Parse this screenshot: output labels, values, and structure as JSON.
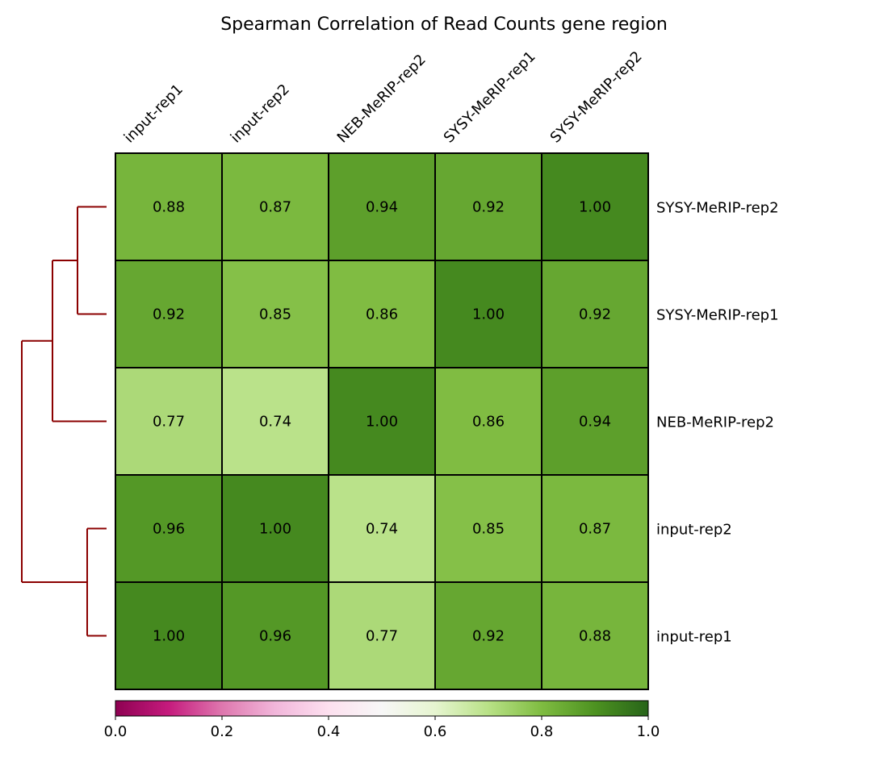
{
  "chart_data": {
    "type": "heatmap",
    "title": "Spearman Correlation of Read Counts gene region",
    "columns": [
      "input-rep1",
      "input-rep2",
      "NEB-MeRIP-rep2",
      "SYSY-MeRIP-rep1",
      "SYSY-MeRIP-rep2"
    ],
    "rows": [
      "SYSY-MeRIP-rep2",
      "SYSY-MeRIP-rep1",
      "NEB-MeRIP-rep2",
      "input-rep2",
      "input-rep1"
    ],
    "values": [
      [
        0.88,
        0.87,
        0.94,
        0.92,
        1.0
      ],
      [
        0.92,
        0.85,
        0.86,
        1.0,
        0.92
      ],
      [
        0.77,
        0.74,
        1.0,
        0.86,
        0.94
      ],
      [
        0.96,
        1.0,
        0.74,
        0.85,
        0.87
      ],
      [
        1.0,
        0.96,
        0.77,
        0.92,
        0.88
      ]
    ],
    "value_labels": [
      [
        "0.88",
        "0.87",
        "0.94",
        "0.92",
        "1.00"
      ],
      [
        "0.92",
        "0.85",
        "0.86",
        "1.00",
        "0.92"
      ],
      [
        "0.77",
        "0.74",
        "1.00",
        "0.86",
        "0.94"
      ],
      [
        "0.96",
        "1.00",
        "0.74",
        "0.85",
        "0.87"
      ],
      [
        "1.00",
        "0.96",
        "0.77",
        "0.92",
        "0.88"
      ]
    ],
    "colorbar": {
      "range": [
        0.0,
        1.0
      ],
      "ticks": [
        0.0,
        0.2,
        0.4,
        0.6,
        0.8,
        1.0
      ],
      "tick_labels": [
        "0.0",
        "0.2",
        "0.4",
        "0.6",
        "0.8",
        "1.0"
      ],
      "colormap": "PiYG",
      "placement": "bottom"
    },
    "dendrogram": {
      "side": "left",
      "color": "#8b0000",
      "merges": [
        {
          "members": [
            "input-rep2",
            "input-rep1"
          ]
        },
        {
          "members": [
            "SYSY-MeRIP-rep2",
            "SYSY-MeRIP-rep1"
          ]
        },
        {
          "members": [
            "SYSY-MeRIP-rep2",
            "SYSY-MeRIP-rep1",
            "NEB-MeRIP-rep2"
          ]
        },
        {
          "members": [
            "SYSY-MeRIP-rep2",
            "SYSY-MeRIP-rep1",
            "NEB-MeRIP-rep2",
            "input-rep2",
            "input-rep1"
          ]
        }
      ]
    }
  }
}
